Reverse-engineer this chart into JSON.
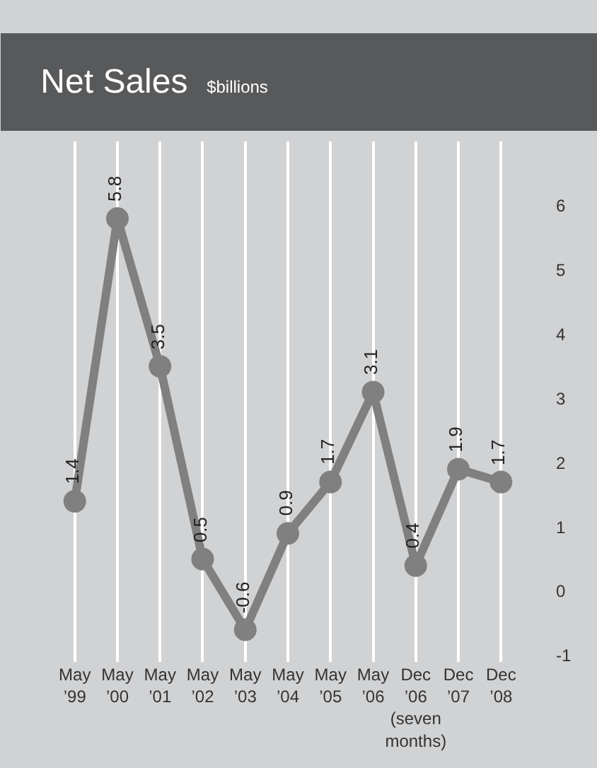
{
  "chart_data": {
    "type": "line",
    "title": "Net Sales",
    "subtitle": "$billions",
    "categories": [
      "May\n’99",
      "May\n’00",
      "May\n’01",
      "May\n’02",
      "May\n’03",
      "May\n’04",
      "May\n’05",
      "May\n’06",
      "Dec\n’06\n(seven\nmonths)",
      "Dec\n’07",
      "Dec\n’08"
    ],
    "series": [
      {
        "color": "#808080",
        "values": [
          1.4,
          5.8,
          3.5,
          0.5,
          -0.6,
          0.9,
          1.7,
          3.1,
          0.4,
          1.9,
          1.7
        ]
      }
    ],
    "ylim": [
      -1.1,
      7.0
    ],
    "yticks": [
      -1,
      0,
      1,
      2,
      3,
      4,
      5,
      6
    ],
    "grid": "x",
    "marker": "circle",
    "line_style": "solid",
    "data_labels": true,
    "legend": false
  }
}
